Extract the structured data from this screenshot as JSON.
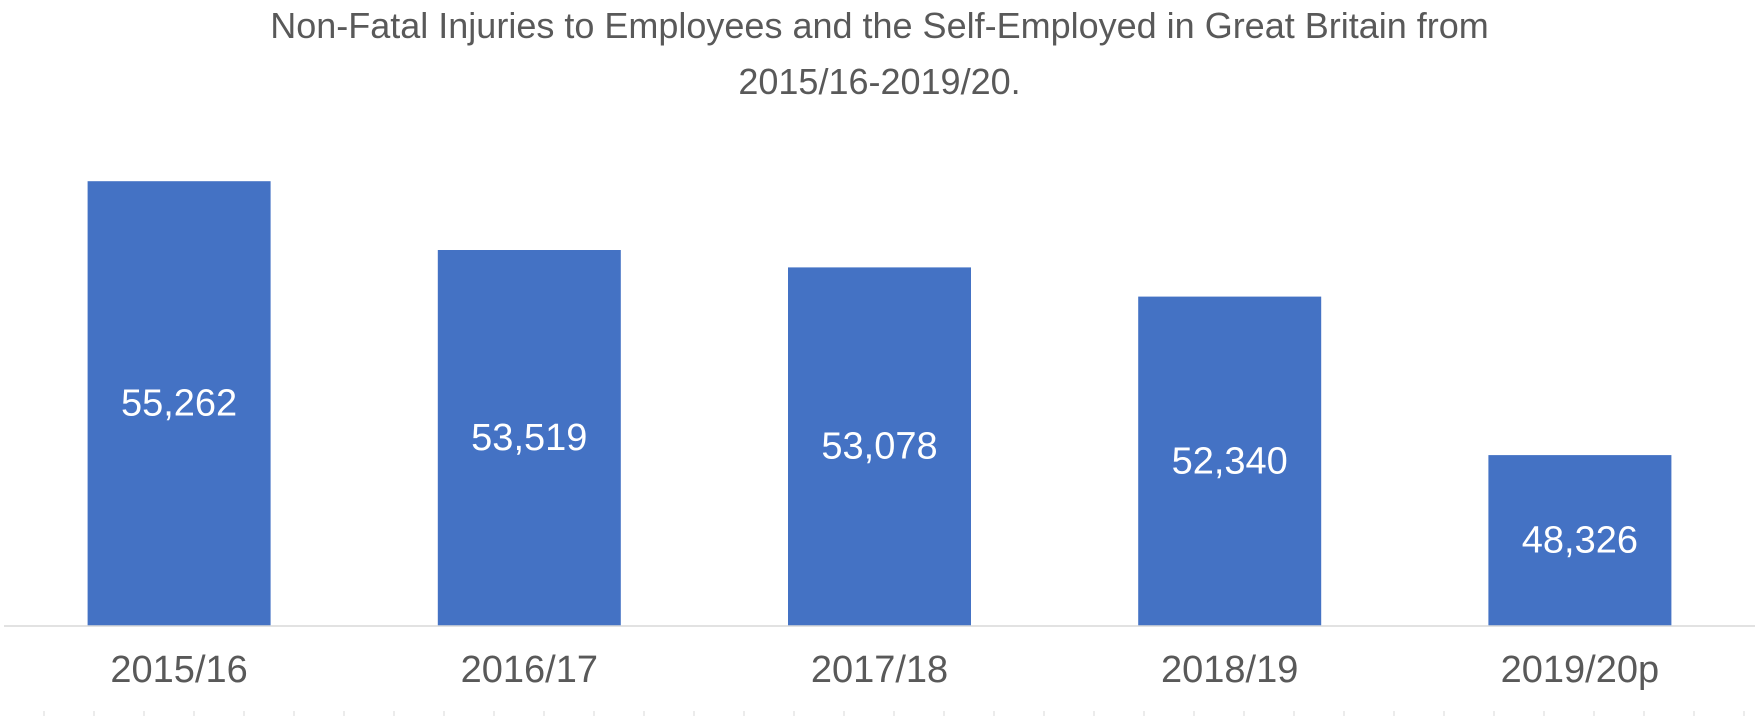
{
  "chart_data": {
    "type": "bar",
    "title_lines": [
      "Non-Fatal Injuries to Employees and the Self-Employed in Great Britain from",
      "2015/16-2019/20."
    ],
    "categories": [
      "2015/16",
      "2016/17",
      "2017/18",
      "2018/19",
      "2019/20p"
    ],
    "values": [
      55262,
      53519,
      53078,
      52340,
      48326
    ],
    "data_labels": [
      "55,262",
      "53,519",
      "53,078",
      "52,340",
      "48,326"
    ],
    "ylim": [
      44000,
      56000
    ],
    "grid": false,
    "legend": "none",
    "bar_color": "#4472C4"
  }
}
